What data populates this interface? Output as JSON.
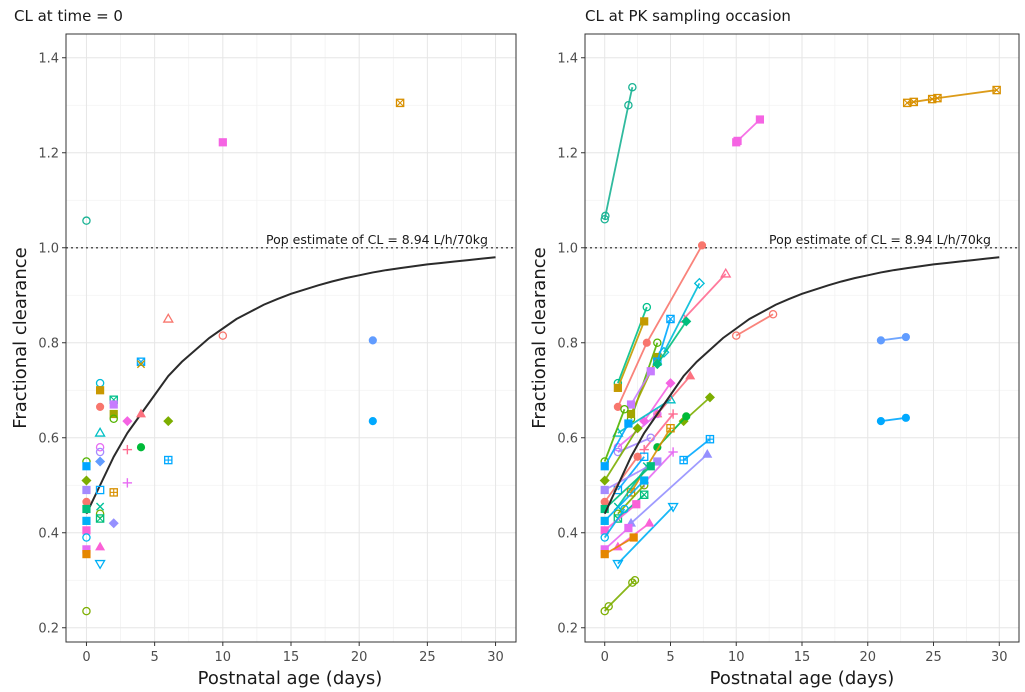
{
  "figure": {
    "xlabel": "Postnatal age (days)",
    "ylabel": "Fractional clearance"
  },
  "chart_data": [
    {
      "type": "scatter",
      "title": "CL at time = 0",
      "xlabel": "Postnatal age (days)",
      "ylabel": "Fractional clearance",
      "xlim": [
        -1.5,
        31.5
      ],
      "ylim": [
        0.17,
        1.45
      ],
      "xticks": [
        0,
        5,
        10,
        15,
        20,
        25,
        30
      ],
      "yticks": [
        0.2,
        0.4,
        0.6,
        0.8,
        1.0,
        1.2,
        1.4
      ],
      "grid": true,
      "reference_line": {
        "y": 1.0,
        "label": "Pop estimate of CL = 8.94 L/h/70kg"
      },
      "model_curve": {
        "x": [
          0,
          1,
          2,
          3,
          4,
          5,
          6,
          7,
          8,
          9,
          10,
          11,
          12,
          13,
          14,
          15,
          16,
          17,
          18,
          19,
          20,
          21,
          22,
          23,
          24,
          25,
          26,
          27,
          28,
          29,
          30
        ],
        "y": [
          0.44,
          0.5,
          0.56,
          0.61,
          0.65,
          0.69,
          0.73,
          0.76,
          0.785,
          0.81,
          0.83,
          0.85,
          0.865,
          0.88,
          0.892,
          0.903,
          0.912,
          0.921,
          0.929,
          0.936,
          0.942,
          0.948,
          0.953,
          0.957,
          0.961,
          0.965,
          0.968,
          0.971,
          0.974,
          0.977,
          0.98
        ]
      },
      "points": [
        {
          "x": 0,
          "y": 1.057,
          "color": "#19b394",
          "shape": "circle-open"
        },
        {
          "x": 0,
          "y": 0.55,
          "color": "#53b400",
          "shape": "circle-open"
        },
        {
          "x": 0,
          "y": 0.54,
          "color": "#00a6ff",
          "shape": "square"
        },
        {
          "x": 0,
          "y": 0.51,
          "color": "#7cae00",
          "shape": "diamond"
        },
        {
          "x": 0,
          "y": 0.49,
          "color": "#a58aff",
          "shape": "square"
        },
        {
          "x": 0,
          "y": 0.465,
          "color": "#f8766d",
          "shape": "circle"
        },
        {
          "x": 0,
          "y": 0.45,
          "color": "#00bf7d",
          "shape": "square"
        },
        {
          "x": 0,
          "y": 0.425,
          "color": "#00b0f6",
          "shape": "square"
        },
        {
          "x": 0,
          "y": 0.405,
          "color": "#fb61d7",
          "shape": "square"
        },
        {
          "x": 0,
          "y": 0.39,
          "color": "#00b4f0",
          "shape": "circle-open"
        },
        {
          "x": 0,
          "y": 0.365,
          "color": "#e76bf3",
          "shape": "square"
        },
        {
          "x": 0,
          "y": 0.355,
          "color": "#e58700",
          "shape": "square"
        },
        {
          "x": 0,
          "y": 0.235,
          "color": "#7cae00",
          "shape": "circle-open"
        },
        {
          "x": 1,
          "y": 0.715,
          "color": "#00bcd8",
          "shape": "circle-open"
        },
        {
          "x": 1,
          "y": 0.7,
          "color": "#c99800",
          "shape": "square"
        },
        {
          "x": 1,
          "y": 0.665,
          "color": "#f8766d",
          "shape": "circle"
        },
        {
          "x": 1,
          "y": 0.61,
          "color": "#00bfc4",
          "shape": "triangle-open"
        },
        {
          "x": 1,
          "y": 0.58,
          "color": "#e76bf3",
          "shape": "circle-open"
        },
        {
          "x": 1,
          "y": 0.57,
          "color": "#a58aff",
          "shape": "circle-open"
        },
        {
          "x": 1,
          "y": 0.55,
          "color": "#619cff",
          "shape": "diamond"
        },
        {
          "x": 1,
          "y": 0.49,
          "color": "#00a9ff",
          "shape": "square-open"
        },
        {
          "x": 1,
          "y": 0.455,
          "color": "#00c19a",
          "shape": "x"
        },
        {
          "x": 1,
          "y": 0.44,
          "color": "#7cae00",
          "shape": "circle-open"
        },
        {
          "x": 1,
          "y": 0.43,
          "color": "#00bf7d",
          "shape": "square-x"
        },
        {
          "x": 1,
          "y": 0.37,
          "color": "#fb61d7",
          "shape": "triangle"
        },
        {
          "x": 1,
          "y": 0.335,
          "color": "#00b0f6",
          "shape": "triangle-down-open"
        },
        {
          "x": 2,
          "y": 0.68,
          "color": "#00c08b",
          "shape": "square-x"
        },
        {
          "x": 2,
          "y": 0.67,
          "color": "#c77cff",
          "shape": "square"
        },
        {
          "x": 2,
          "y": 0.65,
          "color": "#a3a500",
          "shape": "square"
        },
        {
          "x": 2,
          "y": 0.64,
          "color": "#53b400",
          "shape": "circle-open"
        },
        {
          "x": 2,
          "y": 0.485,
          "color": "#d89000",
          "shape": "square-plus"
        },
        {
          "x": 2,
          "y": 0.42,
          "color": "#9590ff",
          "shape": "diamond"
        },
        {
          "x": 3,
          "y": 0.635,
          "color": "#f564e3",
          "shape": "diamond"
        },
        {
          "x": 3,
          "y": 0.575,
          "color": "#ff6c91",
          "shape": "plus"
        },
        {
          "x": 3,
          "y": 0.505,
          "color": "#e76bf3",
          "shape": "plus"
        },
        {
          "x": 4,
          "y": 0.76,
          "color": "#00a9ff",
          "shape": "square-x"
        },
        {
          "x": 4,
          "y": 0.755,
          "color": "#c49a00",
          "shape": "x"
        },
        {
          "x": 4,
          "y": 0.65,
          "color": "#fc717f",
          "shape": "triangle"
        },
        {
          "x": 4,
          "y": 0.58,
          "color": "#00ba38",
          "shape": "circle"
        },
        {
          "x": 6,
          "y": 0.85,
          "color": "#f8766d",
          "shape": "triangle-open"
        },
        {
          "x": 6,
          "y": 0.635,
          "color": "#7cae00",
          "shape": "diamond"
        },
        {
          "x": 6,
          "y": 0.553,
          "color": "#00a9ff",
          "shape": "square-plus"
        },
        {
          "x": 10,
          "y": 1.222,
          "color": "#f564e3",
          "shape": "square"
        },
        {
          "x": 10,
          "y": 0.815,
          "color": "#f8766d",
          "shape": "circle-open"
        },
        {
          "x": 21,
          "y": 0.805,
          "color": "#619cff",
          "shape": "circle"
        },
        {
          "x": 21,
          "y": 0.635,
          "color": "#00a9ff",
          "shape": "circle"
        },
        {
          "x": 23,
          "y": 1.305,
          "color": "#d89000",
          "shape": "square-x"
        }
      ]
    },
    {
      "type": "line",
      "title": "CL at PK sampling occasion",
      "xlabel": "Postnatal age (days)",
      "ylabel": "Fractional clearance",
      "xlim": [
        -1.5,
        31.5
      ],
      "ylim": [
        0.17,
        1.45
      ],
      "xticks": [
        0,
        5,
        10,
        15,
        20,
        25,
        30
      ],
      "yticks": [
        0.2,
        0.4,
        0.6,
        0.8,
        1.0,
        1.2,
        1.4
      ],
      "grid": true,
      "reference_line": {
        "y": 1.0,
        "label": "Pop estimate of CL = 8.94 L/h/70kg"
      },
      "model_curve": {
        "x": [
          0,
          1,
          2,
          3,
          4,
          5,
          6,
          7,
          8,
          9,
          10,
          11,
          12,
          13,
          14,
          15,
          16,
          17,
          18,
          19,
          20,
          21,
          22,
          23,
          24,
          25,
          26,
          27,
          28,
          29,
          30
        ],
        "y": [
          0.44,
          0.5,
          0.56,
          0.61,
          0.65,
          0.69,
          0.73,
          0.76,
          0.785,
          0.81,
          0.83,
          0.85,
          0.865,
          0.88,
          0.892,
          0.903,
          0.912,
          0.921,
          0.929,
          0.936,
          0.942,
          0.948,
          0.953,
          0.957,
          0.961,
          0.965,
          0.968,
          0.971,
          0.974,
          0.977,
          0.98
        ]
      },
      "trajectories": [
        {
          "color": "#19b394",
          "shape": "circle-open",
          "x": [
            0,
            0.05,
            1.8,
            2.1
          ],
          "y": [
            1.06,
            1.067,
            1.3,
            1.338
          ]
        },
        {
          "color": "#f564e3",
          "shape": "square",
          "x": [
            10,
            10.1,
            11.8
          ],
          "y": [
            1.222,
            1.225,
            1.27
          ]
        },
        {
          "color": "#d89000",
          "shape": "square-x",
          "x": [
            23,
            23.5,
            24.9,
            25.3,
            29.8
          ],
          "y": [
            1.305,
            1.307,
            1.313,
            1.315,
            1.332
          ]
        },
        {
          "color": "#f8766d",
          "shape": "circle",
          "x": [
            1,
            3.2,
            7.4
          ],
          "y": [
            0.665,
            0.8,
            1.005
          ]
        },
        {
          "color": "#ff6c91",
          "shape": "triangle-open",
          "x": [
            6,
            9.2
          ],
          "y": [
            0.85,
            0.945
          ]
        },
        {
          "color": "#00bcd8",
          "shape": "diamond-open",
          "x": [
            4.5,
            7.2
          ],
          "y": [
            0.78,
            0.925
          ]
        },
        {
          "color": "#00c08b",
          "shape": "circle-open",
          "x": [
            1,
            3.2
          ],
          "y": [
            0.715,
            0.875
          ]
        },
        {
          "color": "#c49a00",
          "shape": "square",
          "x": [
            1,
            3
          ],
          "y": [
            0.705,
            0.845
          ]
        },
        {
          "color": "#f8766d",
          "shape": "circle-open",
          "x": [
            10,
            12.8
          ],
          "y": [
            0.815,
            0.86
          ]
        },
        {
          "color": "#619cff",
          "shape": "circle",
          "x": [
            21,
            22.9
          ],
          "y": [
            0.805,
            0.812
          ]
        },
        {
          "color": "#00a9ff",
          "shape": "circle",
          "x": [
            21,
            22.9
          ],
          "y": [
            0.635,
            0.642
          ]
        },
        {
          "color": "#53b400",
          "shape": "circle-open",
          "x": [
            2,
            4
          ],
          "y": [
            0.64,
            0.8
          ]
        },
        {
          "color": "#a3a500",
          "shape": "square",
          "x": [
            2,
            4
          ],
          "y": [
            0.65,
            0.77
          ]
        },
        {
          "color": "#00a9ff",
          "shape": "square-x",
          "x": [
            4,
            5
          ],
          "y": [
            0.76,
            0.85
          ]
        },
        {
          "color": "#00bf7d",
          "shape": "diamond",
          "x": [
            4,
            6.2
          ],
          "y": [
            0.755,
            0.845
          ]
        },
        {
          "color": "#fc717f",
          "shape": "triangle",
          "x": [
            4,
            6.5
          ],
          "y": [
            0.65,
            0.73
          ]
        },
        {
          "color": "#7cae00",
          "shape": "diamond",
          "x": [
            6,
            8
          ],
          "y": [
            0.635,
            0.685
          ]
        },
        {
          "color": "#f564e3",
          "shape": "diamond",
          "x": [
            3,
            5
          ],
          "y": [
            0.635,
            0.715
          ]
        },
        {
          "color": "#ff6c91",
          "shape": "plus",
          "x": [
            3,
            5.2
          ],
          "y": [
            0.575,
            0.65
          ]
        },
        {
          "color": "#e76bf3",
          "shape": "plus",
          "x": [
            3,
            5.2
          ],
          "y": [
            0.505,
            0.57
          ]
        },
        {
          "color": "#00ba38",
          "shape": "circle",
          "x": [
            4,
            6.2
          ],
          "y": [
            0.58,
            0.645
          ]
        },
        {
          "color": "#00a9ff",
          "shape": "square-plus",
          "x": [
            6,
            8
          ],
          "y": [
            0.553,
            0.597
          ]
        },
        {
          "color": "#9590ff",
          "shape": "triangle",
          "x": [
            2,
            7.8
          ],
          "y": [
            0.42,
            0.565
          ]
        },
        {
          "color": "#00bfc4",
          "shape": "triangle-open",
          "x": [
            1,
            5
          ],
          "y": [
            0.61,
            0.68
          ]
        },
        {
          "color": "#d89000",
          "shape": "square-plus",
          "x": [
            2,
            5
          ],
          "y": [
            0.485,
            0.62
          ]
        },
        {
          "color": "#c77cff",
          "shape": "square",
          "x": [
            2,
            3.5
          ],
          "y": [
            0.67,
            0.74
          ]
        },
        {
          "color": "#00b0f6",
          "shape": "triangle-down-open",
          "x": [
            1,
            5.2
          ],
          "y": [
            0.335,
            0.455
          ]
        },
        {
          "color": "#e76bf3",
          "shape": "circle-open",
          "x": [
            1,
            4
          ],
          "y": [
            0.58,
            0.65
          ]
        },
        {
          "color": "#a58aff",
          "shape": "circle-open",
          "x": [
            1,
            3.5
          ],
          "y": [
            0.57,
            0.6
          ]
        },
        {
          "color": "#00a9ff",
          "shape": "square-open",
          "x": [
            1,
            3
          ],
          "y": [
            0.49,
            0.56
          ]
        },
        {
          "color": "#00c19a",
          "shape": "x",
          "x": [
            1,
            3.2
          ],
          "y": [
            0.455,
            0.54
          ]
        },
        {
          "color": "#7cae00",
          "shape": "circle-open",
          "x": [
            1,
            3
          ],
          "y": [
            0.44,
            0.5
          ]
        },
        {
          "color": "#00bf7d",
          "shape": "square-x",
          "x": [
            1,
            3
          ],
          "y": [
            0.43,
            0.48
          ]
        },
        {
          "color": "#fb61d7",
          "shape": "triangle",
          "x": [
            1,
            3.4
          ],
          "y": [
            0.37,
            0.42
          ]
        },
        {
          "color": "#7cae00",
          "shape": "circle-open",
          "x": [
            0,
            0.3,
            2.1,
            2.3
          ],
          "y": [
            0.235,
            0.245,
            0.295,
            0.3
          ]
        },
        {
          "color": "#53b400",
          "shape": "circle-open",
          "x": [
            0,
            1.5
          ],
          "y": [
            0.55,
            0.66
          ]
        },
        {
          "color": "#00a6ff",
          "shape": "square",
          "x": [
            0,
            1.8
          ],
          "y": [
            0.54,
            0.63
          ]
        },
        {
          "color": "#7cae00",
          "shape": "diamond",
          "x": [
            0,
            2.5
          ],
          "y": [
            0.51,
            0.62
          ]
        },
        {
          "color": "#a58aff",
          "shape": "square",
          "x": [
            0,
            4
          ],
          "y": [
            0.49,
            0.55
          ]
        },
        {
          "color": "#f8766d",
          "shape": "circle",
          "x": [
            0,
            2.5
          ],
          "y": [
            0.465,
            0.56
          ]
        },
        {
          "color": "#00bf7d",
          "shape": "square",
          "x": [
            0,
            3.5
          ],
          "y": [
            0.45,
            0.54
          ]
        },
        {
          "color": "#00b0f6",
          "shape": "square",
          "x": [
            0,
            3
          ],
          "y": [
            0.425,
            0.51
          ]
        },
        {
          "color": "#fb61d7",
          "shape": "square",
          "x": [
            0,
            2.4
          ],
          "y": [
            0.405,
            0.46
          ]
        },
        {
          "color": "#00b4f0",
          "shape": "circle-open",
          "x": [
            0,
            1.5
          ],
          "y": [
            0.39,
            0.45
          ]
        },
        {
          "color": "#e76bf3",
          "shape": "square",
          "x": [
            0,
            1.8
          ],
          "y": [
            0.365,
            0.41
          ]
        },
        {
          "color": "#e58700",
          "shape": "square",
          "x": [
            0,
            2.2
          ],
          "y": [
            0.355,
            0.39
          ]
        }
      ]
    }
  ]
}
